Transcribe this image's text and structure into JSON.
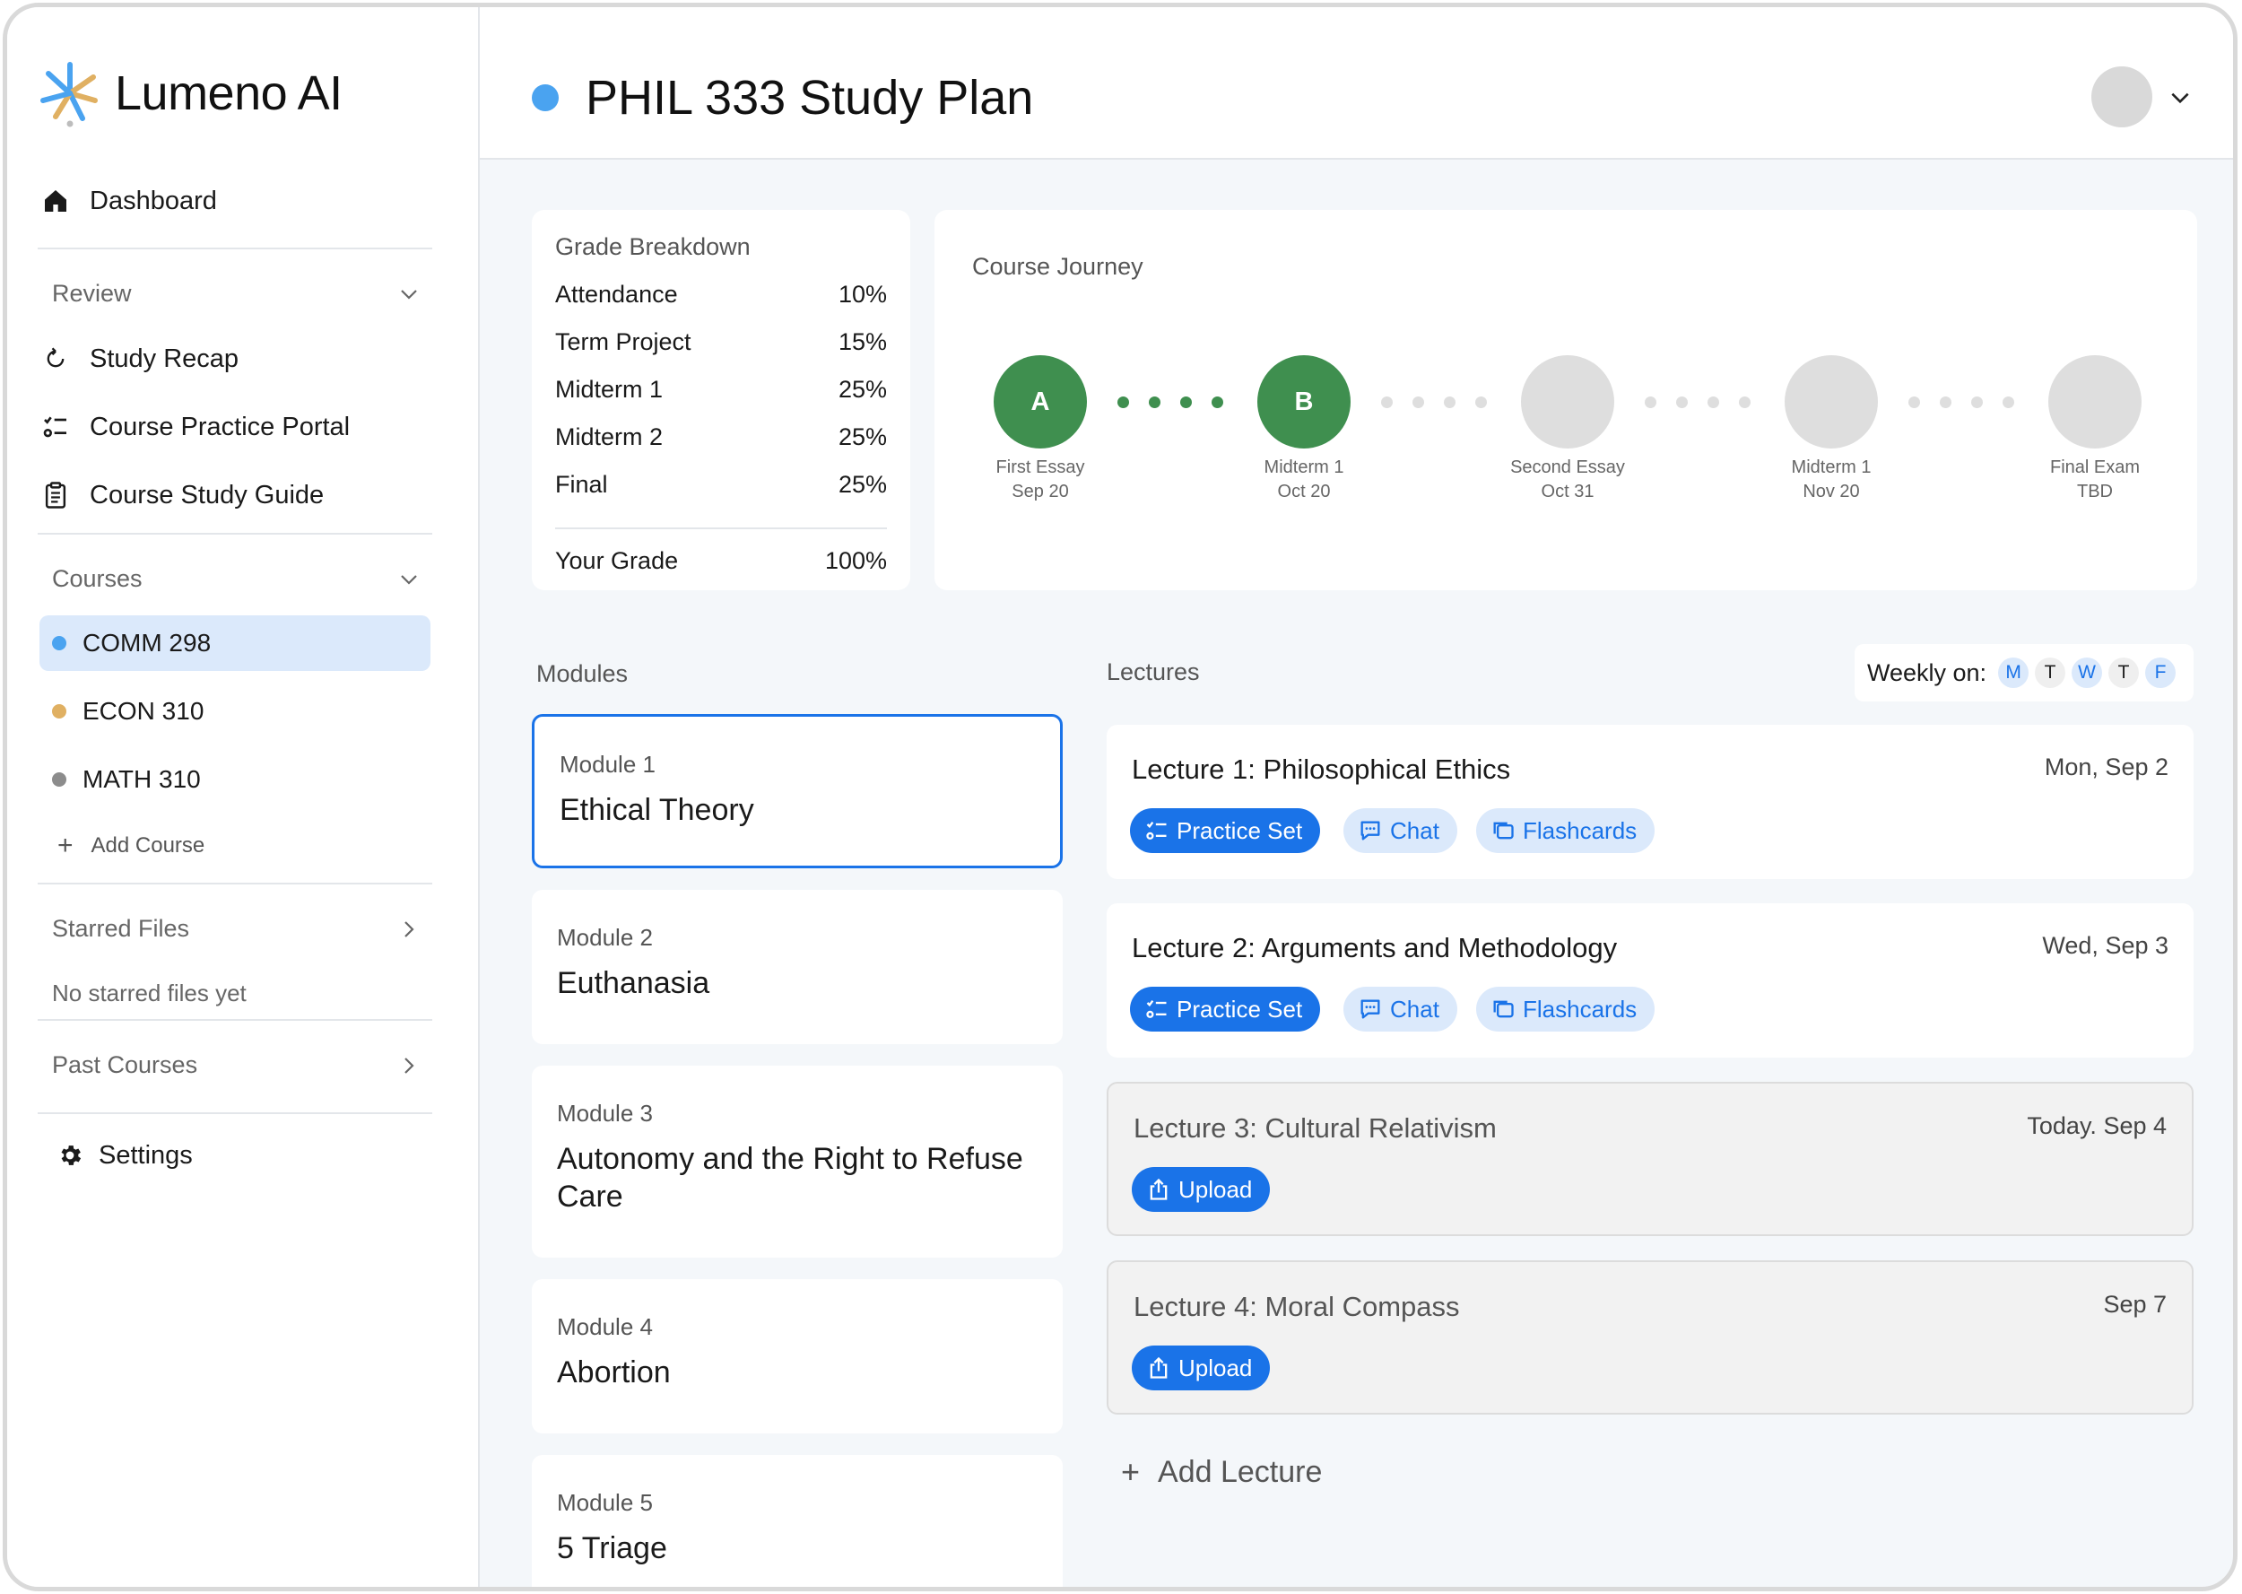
{
  "app": {
    "name": "Lumeno AI"
  },
  "sidebar": {
    "dashboard": "Dashboard",
    "review": {
      "heading": "Review",
      "items": [
        "Study Recap",
        "Course Practice Portal",
        "Course Study Guide"
      ]
    },
    "courses": {
      "heading": "Courses",
      "items": [
        {
          "label": "COMM 298",
          "color": "#4aa3f0",
          "active": true
        },
        {
          "label": "ECON 310",
          "color": "#e0b062",
          "active": false
        },
        {
          "label": "MATH 310",
          "color": "#8c8c8c",
          "active": false
        }
      ],
      "add_label": "Add Course"
    },
    "starred": {
      "heading": "Starred Files",
      "empty": "No starred files yet"
    },
    "past": {
      "heading": "Past Courses"
    },
    "settings": "Settings"
  },
  "header": {
    "title": "PHIL 333 Study Plan",
    "title_dot_color": "#4aa3f0"
  },
  "grade_breakdown": {
    "title": "Grade Breakdown",
    "rows": [
      {
        "label": "Attendance",
        "value": "10%"
      },
      {
        "label": "Term Project",
        "value": "15%"
      },
      {
        "label": "Midterm 1",
        "value": "25%"
      },
      {
        "label": "Midterm 2",
        "value": "25%"
      },
      {
        "label": "Final",
        "value": "25%"
      }
    ],
    "total_label": "Your Grade",
    "total_value": "100%"
  },
  "journey": {
    "title": "Course Journey",
    "nodes": [
      {
        "grade": "A",
        "name": "First Essay",
        "date": "Sep 20",
        "done": true
      },
      {
        "grade": "B",
        "name": "Midterm 1",
        "date": "Oct 20",
        "done": true
      },
      {
        "grade": "",
        "name": "Second Essay",
        "date": "Oct 31",
        "done": false
      },
      {
        "grade": "",
        "name": "Midterm 1",
        "date": "Nov 20",
        "done": false
      },
      {
        "grade": "",
        "name": "Final Exam",
        "date": "TBD",
        "done": false
      }
    ],
    "colors": {
      "done": "#3f8f4f",
      "pending": "#dedede"
    }
  },
  "modules": {
    "heading": "Modules",
    "items": [
      {
        "num": "Module 1",
        "name": "Ethical Theory"
      },
      {
        "num": "Module 2",
        "name": "Euthanasia"
      },
      {
        "num": "Module 3",
        "name": "Autonomy and the Right to Refuse Care"
      },
      {
        "num": "Module 4",
        "name": "Abortion"
      },
      {
        "num": "Module 5",
        "name": "5 Triage"
      }
    ]
  },
  "lectures": {
    "heading": "Lectures",
    "weekly_label": "Weekly on:",
    "days": [
      {
        "d": "M",
        "on": true
      },
      {
        "d": "T",
        "on": false
      },
      {
        "d": "W",
        "on": true
      },
      {
        "d": "T",
        "on": false
      },
      {
        "d": "F",
        "on": true
      }
    ],
    "items": [
      {
        "title": "Lecture 1: Philosophical Ethics",
        "date": "Mon, Sep 2"
      },
      {
        "title": "Lecture 2: Arguments and Methodology",
        "date": "Wed, Sep 3"
      },
      {
        "title": "Lecture 3: Cultural Relativism",
        "date": "Today. Sep 4"
      },
      {
        "title": "Lecture 4: Moral Compass",
        "date": "Sep 7"
      }
    ],
    "actions": {
      "practice": "Practice Set",
      "chat": "Chat",
      "flashcards": "Flashcards",
      "upload": "Upload"
    },
    "add_label": "Add Lecture"
  }
}
